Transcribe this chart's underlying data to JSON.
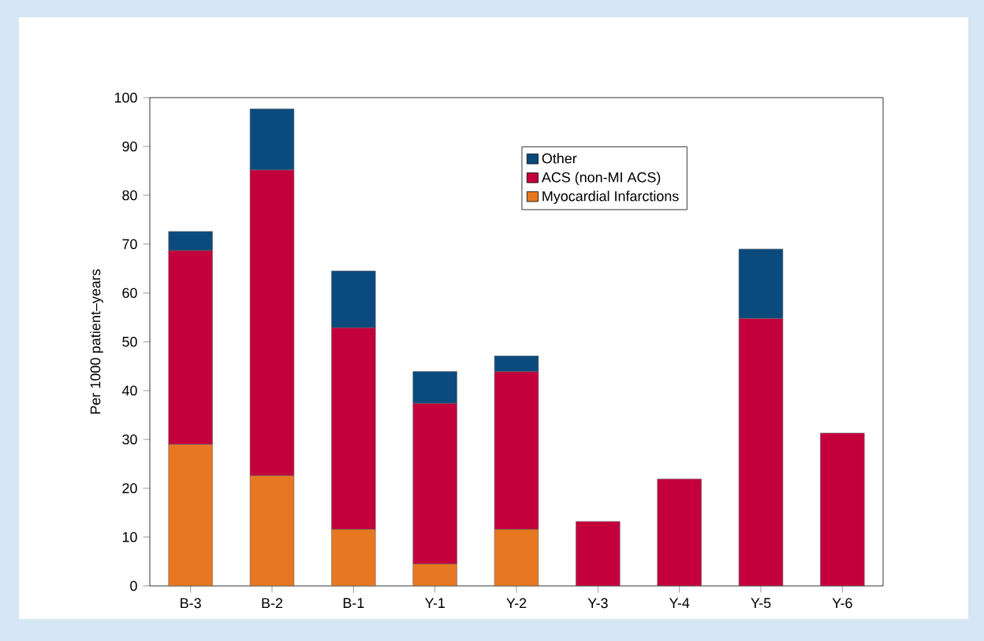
{
  "chart_data": {
    "type": "bar",
    "stacked": true,
    "ylabel": "Per 1000 patient–years",
    "categories": [
      "B-3",
      "B-2",
      "B-1",
      "Y-1",
      "Y-2",
      "Y-3",
      "Y-4",
      "Y-5",
      "Y-6"
    ],
    "series": [
      {
        "name": "Myocardial Infarctions",
        "color": "#e87722",
        "values": [
          29,
          22.6,
          11.6,
          4.5,
          11.6,
          null,
          null,
          null,
          null
        ]
      },
      {
        "name": "ACS (non-MI ACS)",
        "color": "#c4003c",
        "values": [
          39.7,
          62.6,
          41.3,
          32.9,
          32.3,
          13.2,
          21.9,
          54.8,
          31.3
        ]
      },
      {
        "name": "Other",
        "color": "#0b4a7d",
        "values": [
          3.9,
          12.5,
          11.6,
          6.5,
          3.2,
          null,
          null,
          14.2,
          null
        ]
      }
    ],
    "ylim": [
      0,
      100
    ],
    "yticks": [
      0,
      10,
      20,
      30,
      40,
      50,
      60,
      70,
      80,
      90,
      100
    ],
    "legend": "top",
    "grid": false
  }
}
